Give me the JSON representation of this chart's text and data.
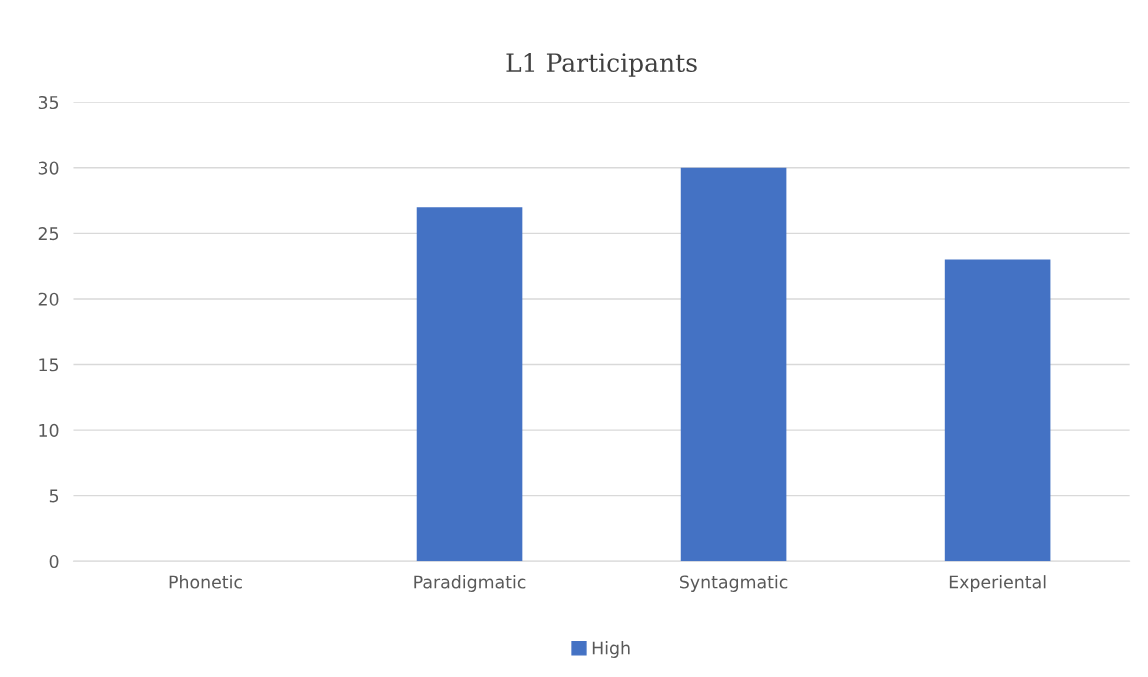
{
  "chart_data": {
    "type": "bar",
    "title": "L1 Participants",
    "categories": [
      "Phonetic",
      "Paradigmatic",
      "Syntagmatic",
      "Experiental"
    ],
    "series": [
      {
        "name": "High",
        "color": "#4472c4",
        "values": [
          0,
          27,
          30,
          23
        ]
      }
    ],
    "ylim": [
      0,
      35
    ],
    "yticks": [
      0,
      5,
      10,
      15,
      20,
      25,
      30,
      35
    ],
    "grid": "y",
    "legend": "bottom"
  }
}
